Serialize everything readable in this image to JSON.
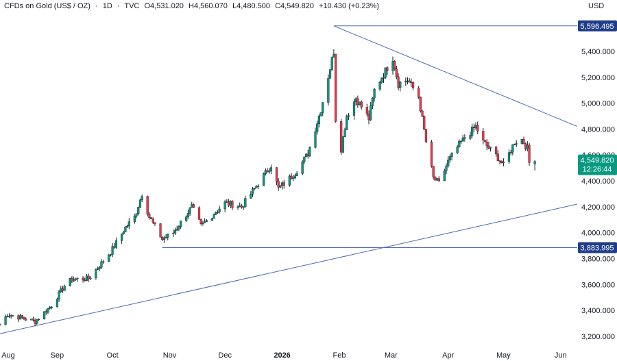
{
  "header": {
    "symbol": "CFDs on Gold (US$ / OZ)",
    "interval": "1D",
    "source": "TVC",
    "open": "O4,531.020",
    "high": "H4,560.070",
    "low": "L4,480.500",
    "close": "C4,549.820",
    "change": "+10.430 (+0.23%)"
  },
  "currency": "USD",
  "colors": {
    "up": "#089981",
    "down": "#f23645",
    "line": "#2962ff",
    "trend": "#4a67b3",
    "level_label_bg": "#1f3d8a",
    "price_label_bg": "#089981"
  },
  "chart_data": {
    "type": "candlestick",
    "y_ticks": [
      "3,200.000",
      "3,400.000",
      "3,600.000",
      "3,800.000",
      "4,000.000",
      "4,200.000",
      "4,400.000",
      "4,600.000",
      "4,800.000",
      "5,000.000",
      "5,200.000",
      "5,400.000"
    ],
    "y_tick_values": [
      3200,
      3400,
      3600,
      3800,
      4000,
      4200,
      4400,
      4600,
      4800,
      5000,
      5200,
      5400
    ],
    "ylim": [
      3120,
      5680
    ],
    "x_labels": [
      "Aug",
      "Sep",
      "Oct",
      "Nov",
      "Dec",
      "2026",
      "Feb",
      "Mar",
      "Apr",
      "May",
      "Jun"
    ],
    "x_label_dates": [
      "2025-08-01",
      "2025-09-01",
      "2025-10-01",
      "2025-11-01",
      "2025-12-01",
      "2026-01-01",
      "2026-02-01",
      "2026-03-01",
      "2026-04-01",
      "2026-05-01",
      "2026-06-01"
    ],
    "xlim": [
      "2025-08-01",
      "2026-06-10"
    ],
    "levels": [
      {
        "value": 5596.495,
        "label": "5,596.495",
        "from": "2026-01-29"
      },
      {
        "value": 3883.995,
        "label": "3,883.995",
        "from": "2025-10-28"
      }
    ],
    "trendlines": [
      {
        "from": {
          "date": "2026-01-29",
          "value": 5596.5
        },
        "to": {
          "date": "2026-06-10",
          "value": 4820
        }
      },
      {
        "from": {
          "date": "2025-08-01",
          "value": 3220
        },
        "to": {
          "date": "2026-06-10",
          "value": 4220
        }
      }
    ],
    "last_price": {
      "value": 4549.82,
      "label": "4,549.820",
      "countdown": "12:26:44"
    },
    "anchors": [
      {
        "date": "2025-08-01",
        "price": 3290
      },
      {
        "date": "2025-08-05",
        "price": 3370
      },
      {
        "date": "2025-08-12",
        "price": 3345
      },
      {
        "date": "2025-08-20",
        "price": 3315
      },
      {
        "date": "2025-08-29",
        "price": 3440
      },
      {
        "date": "2025-09-05",
        "price": 3590
      },
      {
        "date": "2025-09-09",
        "price": 3640
      },
      {
        "date": "2025-09-18",
        "price": 3645
      },
      {
        "date": "2025-09-30",
        "price": 3850
      },
      {
        "date": "2025-10-08",
        "price": 4040
      },
      {
        "date": "2025-10-13",
        "price": 4120
      },
      {
        "date": "2025-10-17",
        "price": 4300
      },
      {
        "date": "2025-10-21",
        "price": 4120
      },
      {
        "date": "2025-10-28",
        "price": 3950
      },
      {
        "date": "2025-11-03",
        "price": 4000
      },
      {
        "date": "2025-11-13",
        "price": 4200
      },
      {
        "date": "2025-11-18",
        "price": 4050
      },
      {
        "date": "2025-12-01",
        "price": 4230
      },
      {
        "date": "2025-12-10",
        "price": 4200
      },
      {
        "date": "2025-12-26",
        "price": 4520
      },
      {
        "date": "2025-12-30",
        "price": 4340
      },
      {
        "date": "2026-01-08",
        "price": 4460
      },
      {
        "date": "2026-01-15",
        "price": 4610
      },
      {
        "date": "2026-01-22",
        "price": 4950
      },
      {
        "date": "2026-01-29",
        "price": 5400
      },
      {
        "date": "2026-01-30",
        "price": 4880
      },
      {
        "date": "2026-02-02",
        "price": 4650
      },
      {
        "date": "2026-02-05",
        "price": 4900
      },
      {
        "date": "2026-02-10",
        "price": 5040
      },
      {
        "date": "2026-02-17",
        "price": 4880
      },
      {
        "date": "2026-02-20",
        "price": 5100
      },
      {
        "date": "2026-02-24",
        "price": 5200
      },
      {
        "date": "2026-03-02",
        "price": 5350
      },
      {
        "date": "2026-03-05",
        "price": 5150
      },
      {
        "date": "2026-03-10",
        "price": 5180
      },
      {
        "date": "2026-03-16",
        "price": 5050
      },
      {
        "date": "2026-03-20",
        "price": 4700
      },
      {
        "date": "2026-03-24",
        "price": 4420
      },
      {
        "date": "2026-03-27",
        "price": 4380
      },
      {
        "date": "2026-04-01",
        "price": 4550
      },
      {
        "date": "2026-04-08",
        "price": 4700
      },
      {
        "date": "2026-04-16",
        "price": 4820
      },
      {
        "date": "2026-04-20",
        "price": 4700
      },
      {
        "date": "2026-04-28",
        "price": 4580
      },
      {
        "date": "2026-05-01",
        "price": 4520
      },
      {
        "date": "2026-05-07",
        "price": 4700
      },
      {
        "date": "2026-05-11",
        "price": 4720
      },
      {
        "date": "2026-05-14",
        "price": 4650
      },
      {
        "date": "2026-05-15",
        "price": 4540
      },
      {
        "date": "2026-05-18",
        "price": 4550
      }
    ]
  }
}
